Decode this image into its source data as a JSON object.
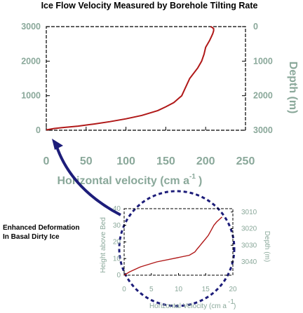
{
  "chart_data": [
    {
      "type": "line",
      "title": "Ice Flow Velocity Measured by Borehole Tilting Rate",
      "xlabel": "Horizontal velocity (cm  a",
      "xlabel_sup": "-1",
      "xlabel_end": ")",
      "ylabel_left": "",
      "ylabel_right": "Depth (m)",
      "xlim": [
        0,
        250
      ],
      "ylim_left": [
        0,
        3000
      ],
      "right_axis_depth_range": [
        3000,
        0
      ],
      "x_ticks": [
        "0",
        "50",
        "100",
        "150",
        "200",
        "250"
      ],
      "y_ticks_left": [
        "0",
        "1000",
        "2000",
        "3000"
      ],
      "y_ticks_right": [
        "0",
        "1000",
        "2000",
        "3000"
      ],
      "grid": false,
      "line_color": "#b01818",
      "series": [
        {
          "x": [
            0,
            5,
            10,
            20,
            40,
            60,
            80,
            100,
            120,
            140,
            150,
            160,
            165,
            170,
            175,
            180,
            190,
            195,
            198,
            200,
            205,
            207,
            209,
            210,
            210,
            208,
            206
          ],
          "y": [
            10,
            30,
            50,
            75,
            120,
            180,
            250,
            330,
            430,
            570,
            680,
            800,
            900,
            1000,
            1250,
            1500,
            1800,
            2000,
            2200,
            2400,
            2600,
            2700,
            2800,
            2880,
            2940,
            2980,
            3000
          ]
        }
      ]
    },
    {
      "type": "line",
      "xlabel": "Horizontal Velocity (cm a",
      "xlabel_sup": "-1",
      "xlabel_end": ")",
      "ylabel_left": "Height above Bed",
      "ylabel_right": "Depth (m)",
      "xlim": [
        0,
        20
      ],
      "ylim_left": [
        0,
        40
      ],
      "right_axis_depth_range": [
        3048,
        3008
      ],
      "x_ticks": [
        "0",
        "5",
        "10",
        "15",
        "20"
      ],
      "y_ticks_left": [
        "0",
        "10",
        "20",
        "30",
        "40"
      ],
      "y_ticks_right": [
        "3010",
        "3020",
        "3030",
        "3040"
      ],
      "grid": false,
      "line_color": "#b01818",
      "series": [
        {
          "x": [
            0,
            1,
            3,
            6,
            9,
            12,
            13,
            13.5,
            14,
            14.5,
            15,
            15.5,
            16,
            16.5,
            17,
            18
          ],
          "y": [
            0,
            2,
            5,
            8,
            10,
            12,
            14,
            16,
            18,
            20,
            22,
            24,
            27,
            30,
            32,
            35
          ]
        }
      ]
    }
  ],
  "annotation": {
    "line1": "Enhanced Deformation",
    "line2": "In Basal Dirty Ice"
  },
  "colors": {
    "axis": "#000000",
    "label": "#8aa89a",
    "data": "#b01818",
    "zoom_circle": "#1d1d7a"
  }
}
